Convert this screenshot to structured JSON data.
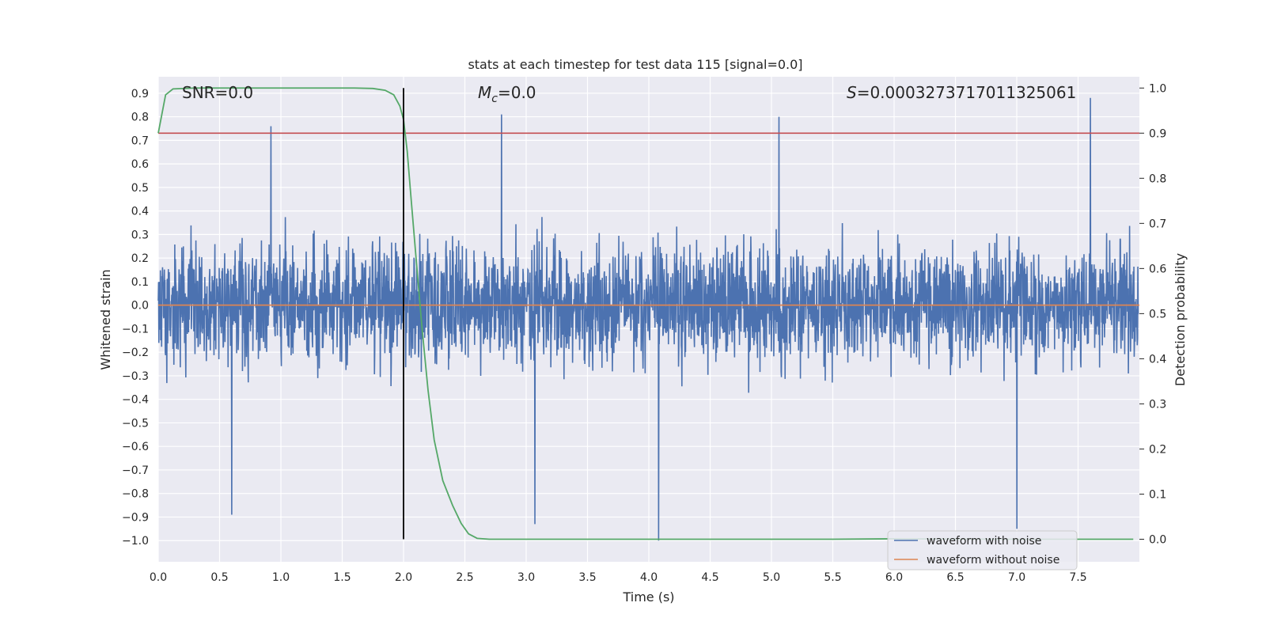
{
  "chart_data": {
    "type": "line",
    "title": "stats at each timestep for test data 115 [signal=0.0]",
    "xlabel": "Time (s)",
    "ylabel_left": "Whitened strain",
    "ylabel_right": "Detection probability",
    "xlim": [
      0.0,
      8.0
    ],
    "ylim_left": [
      -1.09,
      0.97
    ],
    "ylim_right": [
      -0.05,
      1.025
    ],
    "x_ticks": [
      0.0,
      0.5,
      1.0,
      1.5,
      2.0,
      2.5,
      3.0,
      3.5,
      4.0,
      4.5,
      5.0,
      5.5,
      6.0,
      6.5,
      7.0,
      7.5
    ],
    "x_tick_labels": [
      "0.0",
      "0.5",
      "1.0",
      "1.5",
      "2.0",
      "2.5",
      "3.0",
      "3.5",
      "4.0",
      "4.5",
      "5.0",
      "5.5",
      "6.0",
      "6.5",
      "7.0",
      "7.5"
    ],
    "y_left_ticks": [
      0.9,
      0.8,
      0.7,
      0.6,
      0.5,
      0.4,
      0.3,
      0.2,
      0.1,
      0.0,
      -0.1,
      -0.2,
      -0.3,
      -0.4,
      -0.5,
      -0.6,
      -0.7,
      -0.8,
      -0.9,
      -1.0
    ],
    "y_left_tick_labels": [
      "0.9",
      "0.8",
      "0.7",
      "0.6",
      "0.5",
      "0.4",
      "0.3",
      "0.2",
      "0.1",
      "0.0",
      "−0.1",
      "−0.2",
      "−0.3",
      "−0.4",
      "−0.5",
      "−0.6",
      "−0.7",
      "−0.8",
      "−0.9",
      "−1.0"
    ],
    "y_right_ticks": [
      1.0,
      0.9,
      0.8,
      0.7,
      0.6,
      0.5,
      0.4,
      0.3,
      0.2,
      0.1,
      0.0
    ],
    "y_right_tick_labels": [
      "1.0",
      "0.9",
      "0.8",
      "0.7",
      "0.6",
      "0.5",
      "0.4",
      "0.3",
      "0.2",
      "0.1",
      "0.0"
    ],
    "series": [
      {
        "name": "waveform with noise",
        "axis": "left",
        "color": "#4c72b0",
        "description": "dense noise trace, bulk within about ±0.4, extremes from -1.0 to 0.88",
        "envelope_peaks": [
          {
            "x": 0.6,
            "y": -0.89
          },
          {
            "x": 0.92,
            "y": 0.76
          },
          {
            "x": 2.8,
            "y": 0.81
          },
          {
            "x": 3.07,
            "y": -0.93
          },
          {
            "x": 4.08,
            "y": -1.0
          },
          {
            "x": 5.06,
            "y": 0.8
          },
          {
            "x": 7.0,
            "y": -0.95
          },
          {
            "x": 7.6,
            "y": 0.88
          }
        ]
      },
      {
        "name": "waveform without noise",
        "axis": "left",
        "color": "#dd8452",
        "x": [
          0.0,
          8.0
        ],
        "y": [
          0.0,
          0.0
        ]
      },
      {
        "name": "detection probability",
        "axis": "right",
        "color": "#55a868",
        "x": [
          0.0,
          0.06,
          0.12,
          0.3,
          1.0,
          1.6,
          1.75,
          1.85,
          1.92,
          1.97,
          2.0,
          2.03,
          2.06,
          2.1,
          2.15,
          2.2,
          2.25,
          2.32,
          2.4,
          2.47,
          2.53,
          2.6,
          2.7,
          3.0,
          5.5,
          6.0,
          7.0,
          7.95
        ],
        "y": [
          0.9,
          0.985,
          0.998,
          1.0,
          1.0,
          1.0,
          0.999,
          0.995,
          0.985,
          0.96,
          0.93,
          0.86,
          0.76,
          0.63,
          0.47,
          0.33,
          0.22,
          0.13,
          0.075,
          0.035,
          0.012,
          0.002,
          0.0,
          0.0,
          0.0,
          0.001,
          0.0,
          0.0
        ]
      }
    ],
    "threshold_line": {
      "axis": "right",
      "y": 0.9,
      "color": "#c44e52"
    },
    "marker_line": {
      "x": 2.0,
      "color": "#000000"
    },
    "annotations": {
      "snr": "SNR=0.0",
      "mc_symbol": "M",
      "mc_subscript": "c",
      "mc_value": "=0.0",
      "s_symbol": "S",
      "s_value": "=0.0003273717011325061"
    },
    "legend": {
      "placement": "lower-right",
      "entries": [
        "waveform with noise",
        "waveform without noise"
      ]
    },
    "grid": true
  }
}
